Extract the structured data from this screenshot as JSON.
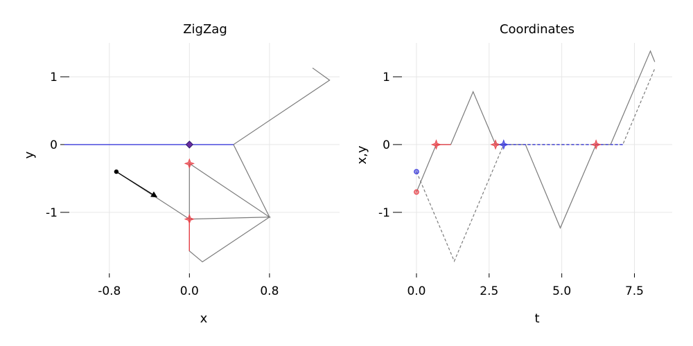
{
  "chart_data": [
    {
      "type": "line",
      "title": "ZigZag",
      "xlabel": "x",
      "ylabel": "y",
      "xlim": [
        -1.2,
        1.5
      ],
      "ylim": [
        -1.9,
        1.5
      ],
      "xticks": [
        -0.8,
        0.0,
        0.8
      ],
      "xtick_labels": [
        "-0.8",
        "0.0",
        "0.8"
      ],
      "yticks": [
        1,
        0,
        -1
      ],
      "ytick_labels": [
        "1",
        "0",
        "-1"
      ],
      "grid": true,
      "colors": {
        "path": "#7a7a7a",
        "blue": "#3b3bdc",
        "red": "#e8434a",
        "purple": "#6a2ca0",
        "arrow": "#000000"
      },
      "series": [
        {
          "style": "solid",
          "color": "gray",
          "x": [
            -0.73,
            0.0,
            0.8,
            0.13,
            0.0,
            0.0,
            0.8,
            0.44,
            1.4,
            1.23
          ],
          "y": [
            -0.4,
            -1.1,
            -1.07,
            -1.73,
            -1.57,
            -0.28,
            -1.07,
            0.0,
            0.95,
            1.13
          ]
        },
        {
          "style": "solid",
          "color": "blue",
          "x": [
            -1.25,
            0.44
          ],
          "y": [
            0.0,
            0.0
          ]
        },
        {
          "style": "solid",
          "color": "red",
          "x": [
            0.0,
            0.0
          ],
          "y": [
            -1.1,
            -1.57
          ]
        }
      ],
      "points": [
        {
          "x": 0.0,
          "y": -0.28,
          "color": "red",
          "marker": "star"
        },
        {
          "x": 0.0,
          "y": -1.1,
          "color": "red",
          "marker": "star"
        },
        {
          "x": 0.0,
          "y": 0.0,
          "color": "purple",
          "marker": "diamond"
        }
      ],
      "arrows": [
        {
          "from": {
            "x": -0.73,
            "y": -0.4
          },
          "to": {
            "x": -0.33,
            "y": -0.77
          }
        }
      ]
    },
    {
      "type": "line",
      "title": "Coordinates",
      "xlabel": "t",
      "ylabel": "x,y",
      "xlim": [
        -0.5,
        8.8
      ],
      "ylim": [
        -1.9,
        1.5
      ],
      "xticks": [
        0.0,
        2.5,
        5.0,
        7.5
      ],
      "xtick_labels": [
        "0.0",
        "2.5",
        "5.0",
        "7.5"
      ],
      "yticks": [
        1,
        0,
        -1
      ],
      "ytick_labels": [
        "1",
        "0",
        "-1"
      ],
      "grid": true,
      "series": [
        {
          "style": "solid",
          "color": "gray",
          "x": [
            0.0,
            0.68,
            1.18,
            1.95,
            2.72,
            3.0,
            3.75,
            4.95,
            6.18,
            6.68,
            8.05,
            8.2
          ],
          "y": [
            -0.7,
            0.0,
            0.0,
            0.78,
            0.0,
            0.0,
            0.0,
            -1.23,
            0.0,
            0.0,
            1.38,
            1.22
          ]
        },
        {
          "style": "dashed",
          "color": "gray",
          "x": [
            0.0,
            1.3,
            3.0,
            7.1,
            8.2
          ],
          "y": [
            -0.4,
            -1.72,
            0.0,
            0.0,
            1.12
          ]
        },
        {
          "style": "solid",
          "color": "red",
          "x": [
            0.68,
            1.18
          ],
          "y": [
            0.0,
            0.0
          ]
        },
        {
          "style": "dashed",
          "color": "blue",
          "x": [
            3.0,
            7.1
          ],
          "y": [
            0.0,
            0.0
          ]
        }
      ],
      "points": [
        {
          "x": 0.0,
          "y": -0.4,
          "color": "blue",
          "marker": "circle"
        },
        {
          "x": 0.0,
          "y": -0.7,
          "color": "red",
          "marker": "circle"
        },
        {
          "x": 0.68,
          "y": 0.0,
          "color": "red",
          "marker": "star"
        },
        {
          "x": 2.72,
          "y": 0.0,
          "color": "red",
          "marker": "star"
        },
        {
          "x": 3.0,
          "y": 0.0,
          "color": "blue",
          "marker": "star"
        },
        {
          "x": 6.18,
          "y": 0.0,
          "color": "red",
          "marker": "star"
        }
      ]
    }
  ]
}
